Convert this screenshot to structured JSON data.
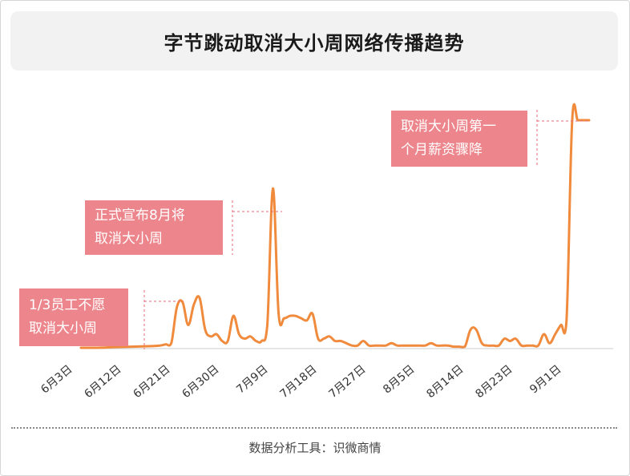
{
  "title": "字节跳动取消大小周网络传播趋势",
  "source": "数据分析工具：识微商情",
  "colors": {
    "line": "#f08a3c",
    "annotation_bg": "#ec868c",
    "annotation_leader": "#e86a7a",
    "axis": "#cccccc",
    "title_bg": "#f2f2f2"
  },
  "annotations": [
    {
      "lines": [
        "1/3员工不愿",
        "取消大小周"
      ],
      "x": 24
    },
    {
      "lines": [
        "正式宣布8月将",
        "取消大小周"
      ],
      "x": 38
    },
    {
      "lines": [
        "取消大小周第一",
        "个月薪资骤降"
      ],
      "x": 90
    }
  ],
  "chart_data": {
    "type": "line",
    "title": "字节跳动取消大小周网络传播趋势",
    "xlabel": "",
    "ylabel": "",
    "grid": false,
    "legend": "none",
    "x_tick_labels": [
      "6月3日",
      "6月12日",
      "6月21日",
      "6月30日",
      "7月9日",
      "7月18日",
      "7月27日",
      "8月5日",
      "8月14日",
      "8月23日",
      "9月1日"
    ],
    "x_start_label": "6月3日",
    "ylim": [
      0,
      100
    ],
    "series": [
      {
        "x": [
          0,
          3,
          6,
          9,
          12,
          13,
          14,
          15,
          16,
          17,
          18,
          19,
          20,
          21,
          22,
          23,
          24,
          25,
          26,
          27,
          28,
          29,
          30,
          31,
          32,
          33,
          34,
          35,
          36,
          37,
          38,
          39,
          40,
          41,
          42,
          43,
          44,
          45,
          46,
          47,
          48,
          49,
          50,
          51,
          52,
          53,
          54,
          55,
          56,
          57,
          58,
          59,
          60,
          61,
          62,
          63,
          64,
          65,
          66,
          67,
          68,
          69,
          70,
          71,
          72,
          73,
          74,
          75,
          76,
          77,
          78,
          79,
          80,
          81,
          82,
          83,
          84,
          85,
          86,
          87,
          88,
          89,
          90
        ],
        "values": [
          0,
          0,
          0.3,
          0.5,
          0.7,
          0.8,
          1,
          1.5,
          2,
          18,
          20,
          10,
          19,
          22,
          8,
          5,
          6,
          3,
          3,
          14,
          6,
          4,
          5,
          3,
          3,
          10,
          70,
          15,
          13,
          14,
          14,
          13,
          12,
          15,
          4,
          4,
          5,
          3,
          3,
          2,
          1,
          1,
          3,
          1,
          1,
          1,
          1,
          2,
          1,
          1,
          1,
          1,
          1,
          1,
          2,
          1,
          1,
          1,
          0.5,
          0.5,
          0.5,
          8,
          8,
          2,
          1,
          1,
          1,
          4,
          3,
          4,
          1,
          1,
          1,
          1,
          6,
          2,
          6,
          10,
          12,
          100,
          100,
          100,
          100
        ]
      }
    ]
  }
}
